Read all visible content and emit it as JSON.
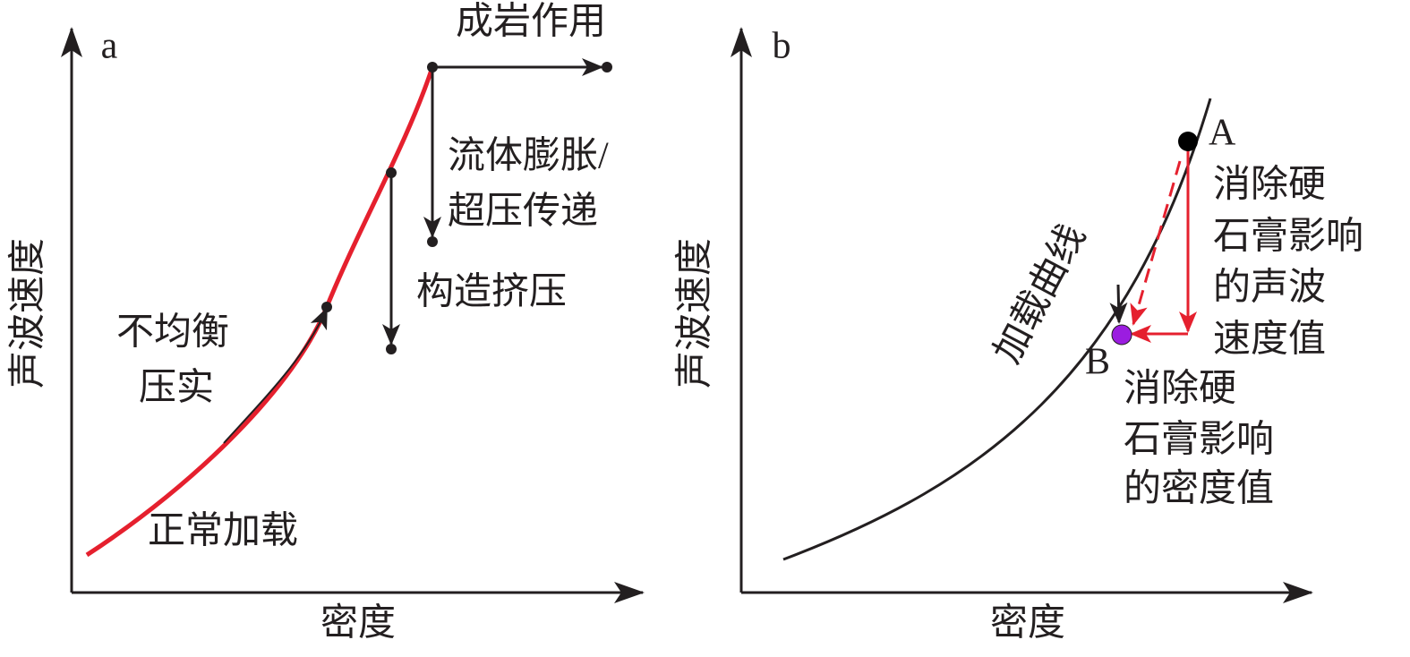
{
  "panel_a": {
    "label": "a",
    "y_axis_label": "声波速度",
    "x_axis_label": "密度",
    "annotations": {
      "diagenesis": "成岩作用",
      "fluid_lines": [
        "流体膨胀/",
        "超压传递"
      ],
      "tectonic": "构造挤压",
      "disequilibrium_lines": [
        "不均衡",
        "压实"
      ],
      "normal_loading": "正常加载"
    }
  },
  "panel_b": {
    "label": "b",
    "y_axis_label": "声波速度",
    "x_axis_label": "密度",
    "curve_label": "加载曲线",
    "point_a": "A",
    "point_b": "B",
    "velocity_note_lines": [
      "消除硬",
      "石膏影响",
      "的声波",
      "速度值"
    ],
    "density_note_lines": [
      "消除硬",
      "石膏影响",
      "的密度值"
    ]
  }
}
